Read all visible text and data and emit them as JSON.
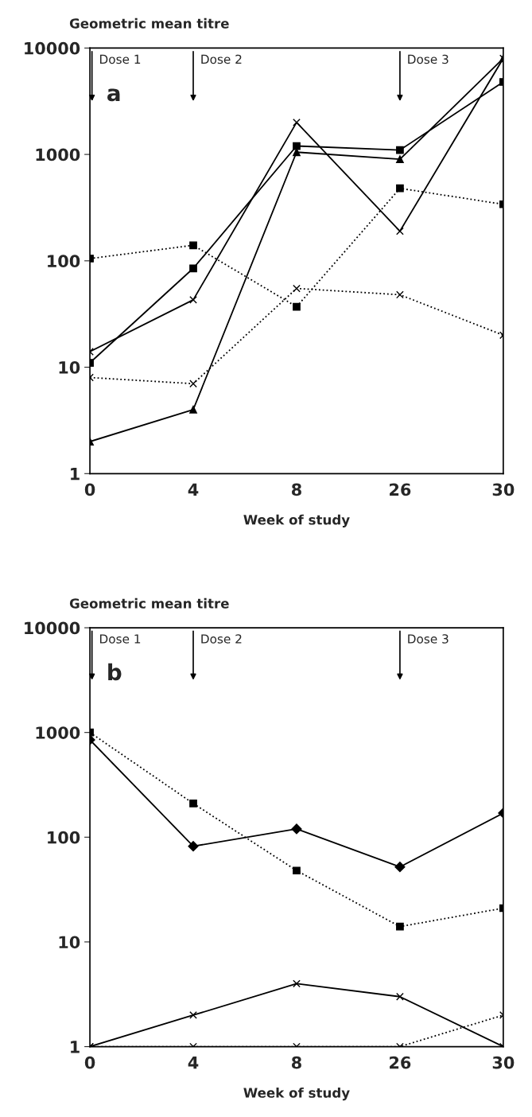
{
  "chart_data": [
    {
      "type": "line",
      "ylabel": "Geometric mean titre",
      "xlabel": "Week of study",
      "log": "y",
      "grid": false,
      "legend": false,
      "categories": [
        "0",
        "4",
        "8",
        "26",
        "30"
      ],
      "ylim": [
        1,
        10000
      ],
      "yticks": [
        1,
        10,
        100,
        1000,
        10000
      ],
      "series": [
        {
          "color": "#000000",
          "marker": "square",
          "line_style": "solid",
          "values": [
            11,
            85,
            1200,
            1100,
            4800
          ]
        },
        {
          "color": "#000000",
          "marker": "triangle",
          "line_style": "solid",
          "values": [
            2,
            4,
            1050,
            900,
            8000
          ]
        },
        {
          "color": "#000000",
          "marker": "cross",
          "line_style": "solid",
          "values": [
            14,
            43,
            2000,
            190,
            8000
          ]
        },
        {
          "color": "#000000",
          "marker": "square",
          "line_style": "dotted",
          "values": [
            105,
            140,
            37,
            480,
            340
          ]
        },
        {
          "color": "#000000",
          "marker": "cross",
          "line_style": "dotted",
          "values": [
            8,
            7,
            55,
            48,
            20
          ]
        }
      ],
      "annotations": [
        "a",
        "Dose 1",
        "Dose 2",
        "Dose 3"
      ]
    },
    {
      "type": "line",
      "ylabel": "Geometric mean titre",
      "xlabel": "Week of study",
      "log": "y",
      "grid": false,
      "legend": false,
      "categories": [
        "0",
        "4",
        "8",
        "26",
        "30"
      ],
      "ylim": [
        1,
        10000
      ],
      "yticks": [
        1,
        10,
        100,
        1000,
        10000
      ],
      "series": [
        {
          "color": "#000000",
          "marker": "diamond",
          "line_style": "solid",
          "values": [
            850,
            82,
            120,
            52,
            170
          ]
        },
        {
          "color": "#000000",
          "marker": "square",
          "line_style": "dotted",
          "values": [
            1000,
            210,
            48,
            14,
            21
          ]
        },
        {
          "color": "#000000",
          "marker": "cross",
          "line_style": "solid",
          "values": [
            1,
            2,
            4,
            3,
            1
          ]
        },
        {
          "color": "#000000",
          "marker": "cross",
          "line_style": "dotted",
          "values": [
            1,
            1,
            1,
            1,
            2
          ]
        }
      ],
      "annotations": [
        "b",
        "Dose 1",
        "Dose 2",
        "Dose 3"
      ]
    }
  ]
}
